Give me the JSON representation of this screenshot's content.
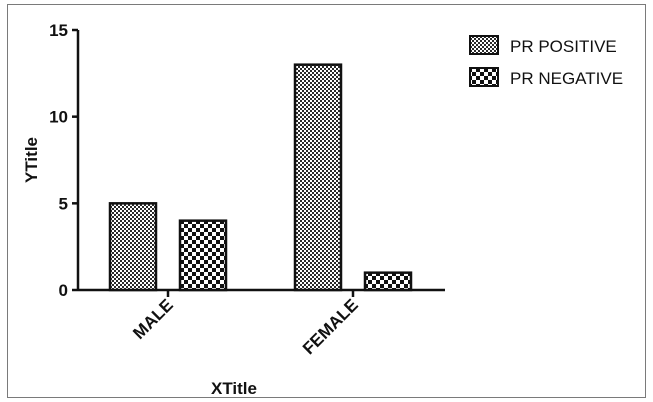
{
  "chart_data": {
    "type": "bar",
    "title": "",
    "xlabel": "XTitle",
    "ylabel": "YTitle",
    "categories": [
      "MALE",
      "FEMALE"
    ],
    "series": [
      {
        "name": "PR POSITIVE",
        "values": [
          5,
          13
        ],
        "pattern": "dense-checker"
      },
      {
        "name": "PR NEGATIVE",
        "values": [
          4,
          1
        ],
        "pattern": "coarse-checker"
      }
    ],
    "ylim": [
      0,
      15
    ],
    "yticks": [
      0,
      5,
      10,
      15
    ],
    "grid": false,
    "legend": "top-right",
    "colors": {
      "bar_fill_dark": "#2a2a2a",
      "bar_fill_light": "#ffffff",
      "axis": "#111111"
    }
  }
}
